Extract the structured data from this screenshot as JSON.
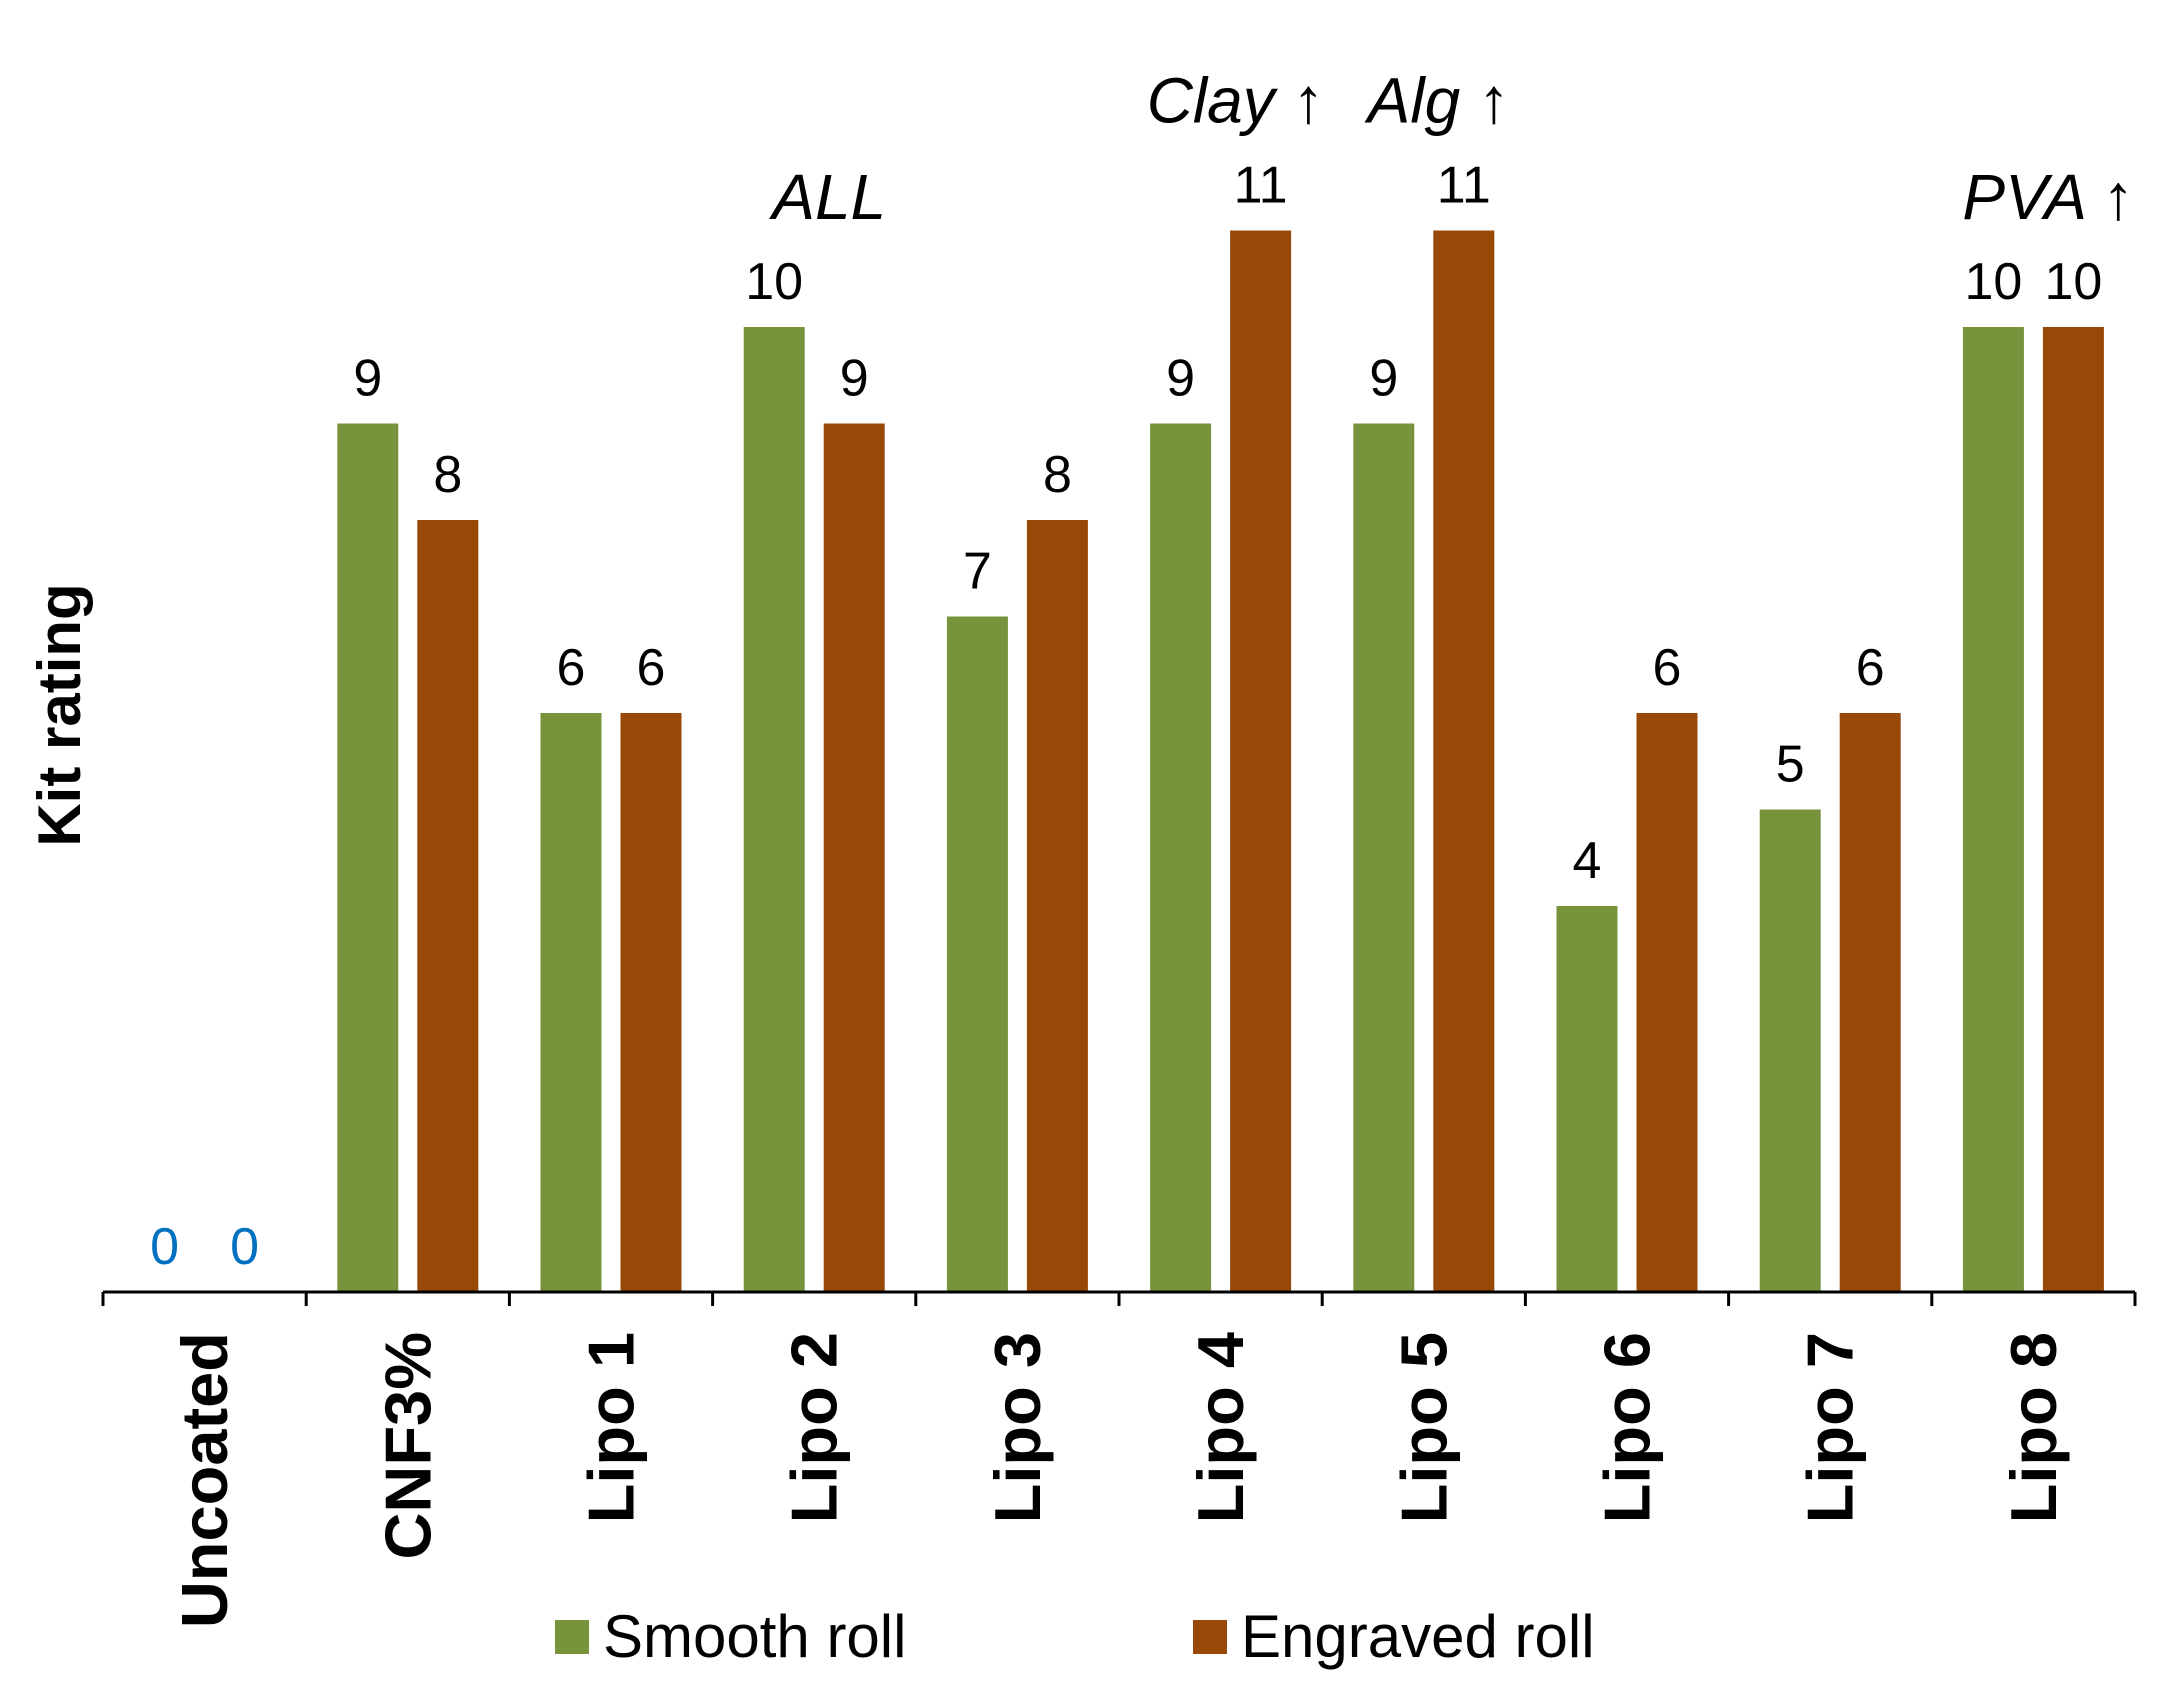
{
  "chart_data": {
    "type": "bar",
    "ylabel": "Kit rating",
    "xlabel": "",
    "ylim": [
      0,
      12
    ],
    "categories": [
      "Uncoated",
      "CNF3%",
      "Lipo 1",
      "Lipo 2",
      "Lipo 3",
      "Lipo 4",
      "Lipo 5",
      "Lipo 6",
      "Lipo 7",
      "Lipo 8"
    ],
    "series": [
      {
        "name": "Smooth roll",
        "color": "#77933C",
        "values": [
          0,
          9,
          6,
          10,
          7,
          9,
          9,
          4,
          5,
          10
        ]
      },
      {
        "name": "Engraved roll",
        "color": "#984807",
        "values": [
          0,
          8,
          6,
          9,
          8,
          11,
          11,
          6,
          6,
          10
        ]
      }
    ],
    "zero_label_color": "#0070C0",
    "annotations": [
      {
        "category": "Lipo 2",
        "text": "ALL"
      },
      {
        "category": "Lipo 4",
        "text": "Clay ↑"
      },
      {
        "category": "Lipo 5",
        "text": "Alg ↑"
      },
      {
        "category": "Lipo 8",
        "text": "PVA ↑"
      }
    ],
    "legend_position": "bottom"
  }
}
